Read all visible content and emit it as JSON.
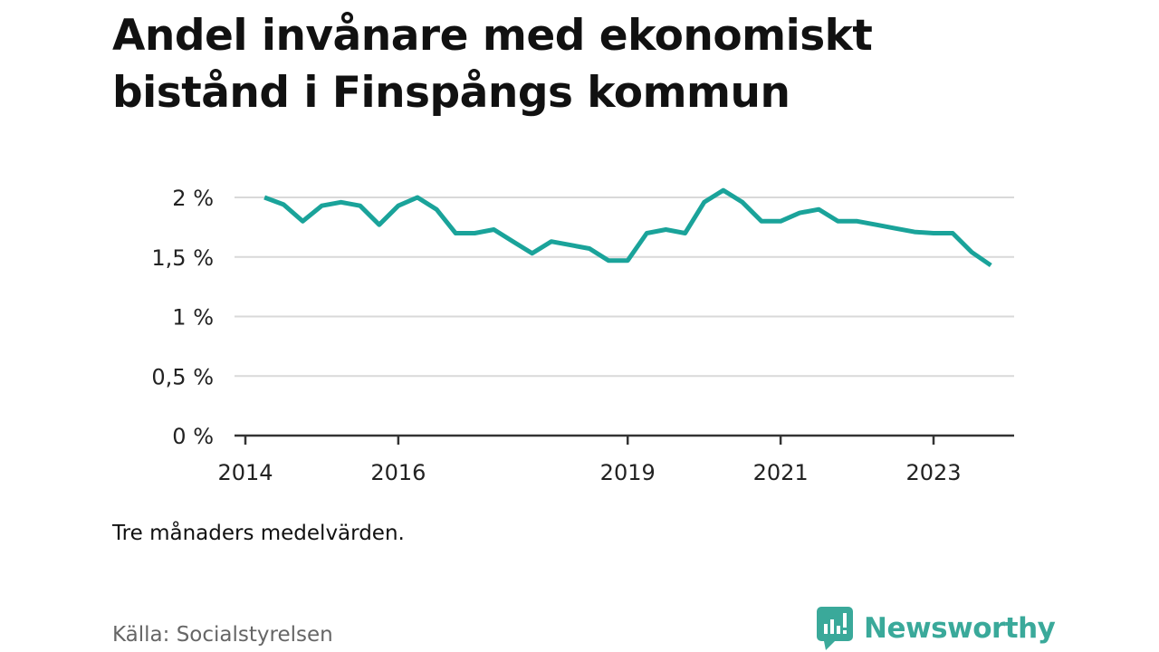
{
  "title": "Andel invånare med ekonomiskt bistånd i Finspångs kommun",
  "note": "Tre månaders medelvärden.",
  "source": "Källa: Socialstyrelsen",
  "brand": {
    "name": "Newsworthy",
    "icon": "newsworthy-logo-icon"
  },
  "colors": {
    "line": "#1aa39a",
    "grid": "#d9d9d9",
    "axis": "#333333",
    "brand": "#3aa99a"
  },
  "chart_data": {
    "type": "line",
    "title": "Andel invånare med ekonomiskt bistånd i Finspångs kommun",
    "xlabel": "",
    "ylabel": "",
    "x_ticks": [
      "2014",
      "2016",
      "2019",
      "2021",
      "2023"
    ],
    "y_ticks": [
      "0 %",
      "0,5 %",
      "1 %",
      "1,5 %",
      "2 %"
    ],
    "xlim": [
      "2014-01",
      "2024-03"
    ],
    "ylim": [
      0,
      2.1
    ],
    "grid": true,
    "legend": "none",
    "series": [
      {
        "values": [
          {
            "x": "2014-04",
            "y": 2.0
          },
          {
            "x": "2014-07",
            "y": 1.94
          },
          {
            "x": "2014-10",
            "y": 1.8
          },
          {
            "x": "2015-01",
            "y": 1.93
          },
          {
            "x": "2015-04",
            "y": 1.96
          },
          {
            "x": "2015-07",
            "y": 1.93
          },
          {
            "x": "2015-10",
            "y": 1.77
          },
          {
            "x": "2016-01",
            "y": 1.93
          },
          {
            "x": "2016-04",
            "y": 2.0
          },
          {
            "x": "2016-07",
            "y": 1.9
          },
          {
            "x": "2016-10",
            "y": 1.7
          },
          {
            "x": "2017-01",
            "y": 1.7
          },
          {
            "x": "2017-04",
            "y": 1.73
          },
          {
            "x": "2017-07",
            "y": 1.63
          },
          {
            "x": "2017-10",
            "y": 1.53
          },
          {
            "x": "2018-01",
            "y": 1.63
          },
          {
            "x": "2018-04",
            "y": 1.6
          },
          {
            "x": "2018-07",
            "y": 1.57
          },
          {
            "x": "2018-10",
            "y": 1.47
          },
          {
            "x": "2019-01",
            "y": 1.47
          },
          {
            "x": "2019-04",
            "y": 1.7
          },
          {
            "x": "2019-07",
            "y": 1.73
          },
          {
            "x": "2019-10",
            "y": 1.7
          },
          {
            "x": "2020-01",
            "y": 1.96
          },
          {
            "x": "2020-04",
            "y": 2.06
          },
          {
            "x": "2020-07",
            "y": 1.96
          },
          {
            "x": "2020-10",
            "y": 1.8
          },
          {
            "x": "2021-01",
            "y": 1.8
          },
          {
            "x": "2021-04",
            "y": 1.87
          },
          {
            "x": "2021-07",
            "y": 1.9
          },
          {
            "x": "2021-10",
            "y": 1.8
          },
          {
            "x": "2022-01",
            "y": 1.8
          },
          {
            "x": "2022-04",
            "y": 1.77
          },
          {
            "x": "2022-07",
            "y": 1.74
          },
          {
            "x": "2022-10",
            "y": 1.71
          },
          {
            "x": "2023-01",
            "y": 1.7
          },
          {
            "x": "2023-04",
            "y": 1.7
          },
          {
            "x": "2023-07",
            "y": 1.54
          },
          {
            "x": "2023-10",
            "y": 1.43
          }
        ]
      }
    ]
  }
}
